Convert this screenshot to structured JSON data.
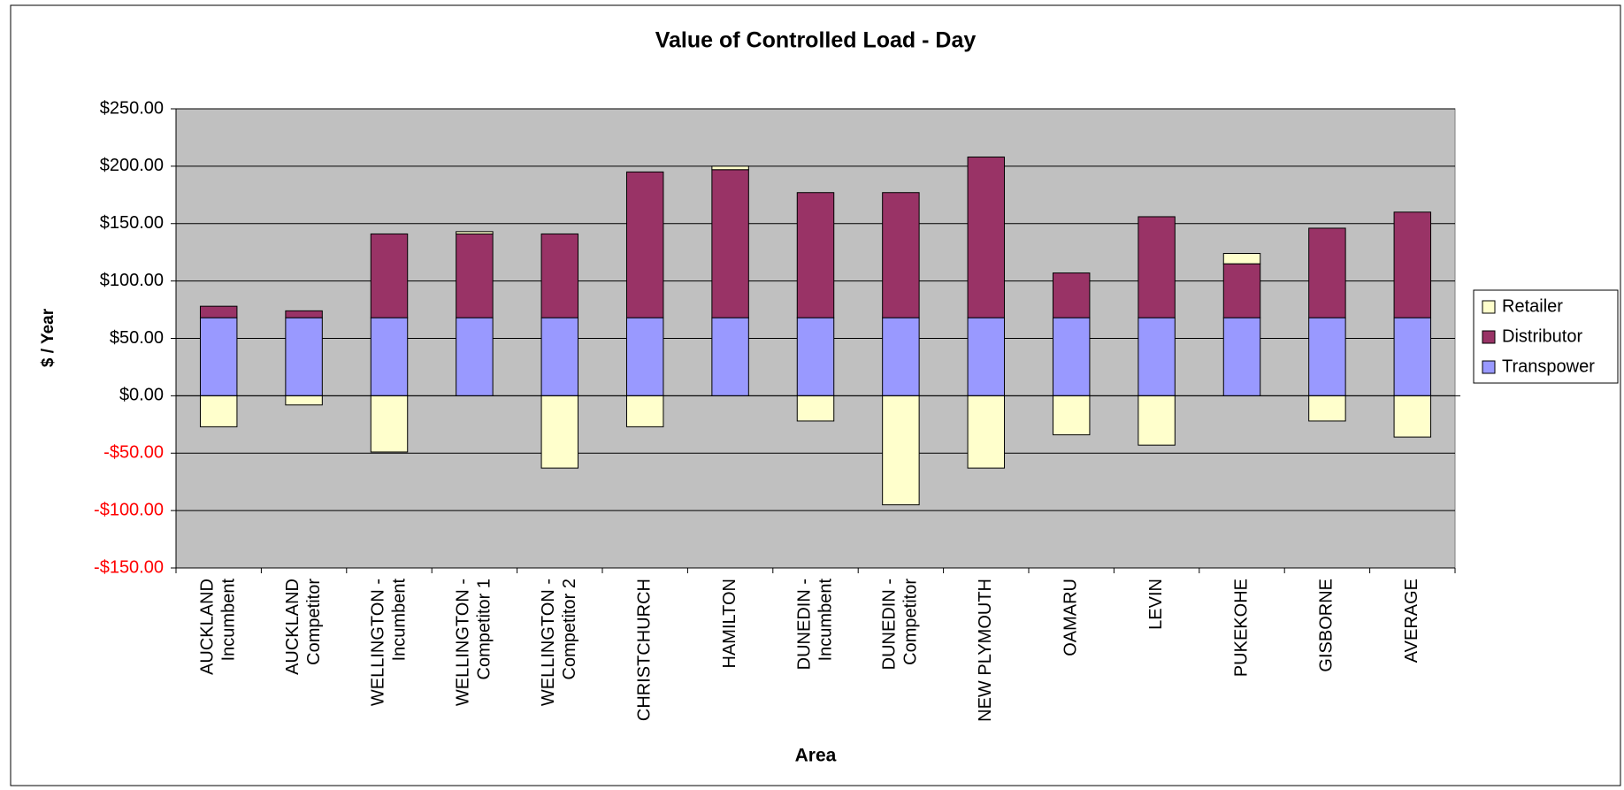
{
  "chart_data": {
    "type": "stacked_bar",
    "title": "Value of Controlled Load - Day",
    "x_label": "Area",
    "y_label": "$ / Year",
    "categories": [
      [
        "AUCKLAND",
        "Incumbent"
      ],
      [
        "AUCKLAND",
        "Competitor"
      ],
      [
        "WELLINGTON -",
        "Incumbent"
      ],
      [
        "WELLINGTON -",
        "Competitor 1"
      ],
      [
        "WELLINGTON -",
        "Competitor 2"
      ],
      [
        "CHRISTCHURCH"
      ],
      [
        "HAMILTON"
      ],
      [
        "DUNEDIN -",
        "Incumbent"
      ],
      [
        "DUNEDIN -",
        "Competitor"
      ],
      [
        "NEW PLYMOUTH"
      ],
      [
        "OAMARU"
      ],
      [
        "LEVIN"
      ],
      [
        "PUKEKOHE"
      ],
      [
        "GISBORNE"
      ],
      [
        "AVERAGE"
      ]
    ],
    "series": [
      {
        "name": "Transpower",
        "color": "#9999ff",
        "values": [
          68,
          68,
          68,
          68,
          68,
          68,
          68,
          68,
          68,
          68,
          68,
          68,
          68,
          68,
          68
        ]
      },
      {
        "name": "Distributor",
        "color": "#993366",
        "values": [
          10,
          6,
          73,
          73,
          73,
          127,
          129,
          109,
          109,
          140,
          39,
          88,
          47,
          78,
          92
        ]
      },
      {
        "name": "Retailer",
        "color": "#ffffcc",
        "values": [
          -27,
          -8,
          -49,
          2,
          -63,
          -27,
          3,
          -22,
          -95,
          -63,
          -34,
          -43,
          9,
          -22,
          -36
        ]
      }
    ],
    "ylim": [
      -150,
      250
    ],
    "yticks": [
      {
        "value": -150,
        "label": "-$150.00"
      },
      {
        "value": -100,
        "label": "-$100.00"
      },
      {
        "value": -50,
        "label": "-$50.00"
      },
      {
        "value": 0,
        "label": "$0.00"
      },
      {
        "value": 50,
        "label": "$50.00"
      },
      {
        "value": 100,
        "label": "$100.00"
      },
      {
        "value": 150,
        "label": "$150.00"
      },
      {
        "value": 200,
        "label": "$200.00"
      },
      {
        "value": 250,
        "label": "$250.00"
      }
    ],
    "negative_tick_color": "#ff0000",
    "plot_background": "#c0c0c0",
    "grid": true,
    "legend": "right"
  }
}
